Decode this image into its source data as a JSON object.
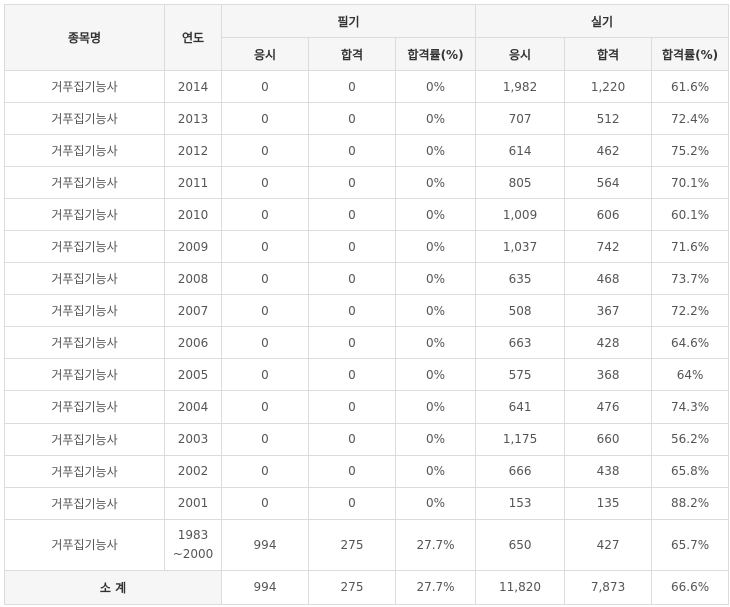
{
  "headers": {
    "name": "종목명",
    "year": "연도",
    "written": "필기",
    "practical": "실기",
    "applicants": "응시",
    "passed": "합격",
    "rate": "합격률(%)"
  },
  "rows": [
    {
      "name": "거푸집기능사",
      "year": "2014",
      "w_app": "0",
      "w_pass": "0",
      "w_rate": "0%",
      "p_app": "1,982",
      "p_pass": "1,220",
      "p_rate": "61.6%"
    },
    {
      "name": "거푸집기능사",
      "year": "2013",
      "w_app": "0",
      "w_pass": "0",
      "w_rate": "0%",
      "p_app": "707",
      "p_pass": "512",
      "p_rate": "72.4%"
    },
    {
      "name": "거푸집기능사",
      "year": "2012",
      "w_app": "0",
      "w_pass": "0",
      "w_rate": "0%",
      "p_app": "614",
      "p_pass": "462",
      "p_rate": "75.2%"
    },
    {
      "name": "거푸집기능사",
      "year": "2011",
      "w_app": "0",
      "w_pass": "0",
      "w_rate": "0%",
      "p_app": "805",
      "p_pass": "564",
      "p_rate": "70.1%"
    },
    {
      "name": "거푸집기능사",
      "year": "2010",
      "w_app": "0",
      "w_pass": "0",
      "w_rate": "0%",
      "p_app": "1,009",
      "p_pass": "606",
      "p_rate": "60.1%"
    },
    {
      "name": "거푸집기능사",
      "year": "2009",
      "w_app": "0",
      "w_pass": "0",
      "w_rate": "0%",
      "p_app": "1,037",
      "p_pass": "742",
      "p_rate": "71.6%"
    },
    {
      "name": "거푸집기능사",
      "year": "2008",
      "w_app": "0",
      "w_pass": "0",
      "w_rate": "0%",
      "p_app": "635",
      "p_pass": "468",
      "p_rate": "73.7%"
    },
    {
      "name": "거푸집기능사",
      "year": "2007",
      "w_app": "0",
      "w_pass": "0",
      "w_rate": "0%",
      "p_app": "508",
      "p_pass": "367",
      "p_rate": "72.2%"
    },
    {
      "name": "거푸집기능사",
      "year": "2006",
      "w_app": "0",
      "w_pass": "0",
      "w_rate": "0%",
      "p_app": "663",
      "p_pass": "428",
      "p_rate": "64.6%"
    },
    {
      "name": "거푸집기능사",
      "year": "2005",
      "w_app": "0",
      "w_pass": "0",
      "w_rate": "0%",
      "p_app": "575",
      "p_pass": "368",
      "p_rate": "64%"
    },
    {
      "name": "거푸집기능사",
      "year": "2004",
      "w_app": "0",
      "w_pass": "0",
      "w_rate": "0%",
      "p_app": "641",
      "p_pass": "476",
      "p_rate": "74.3%"
    },
    {
      "name": "거푸집기능사",
      "year": "2003",
      "w_app": "0",
      "w_pass": "0",
      "w_rate": "0%",
      "p_app": "1,175",
      "p_pass": "660",
      "p_rate": "56.2%"
    },
    {
      "name": "거푸집기능사",
      "year": "2002",
      "w_app": "0",
      "w_pass": "0",
      "w_rate": "0%",
      "p_app": "666",
      "p_pass": "438",
      "p_rate": "65.8%"
    },
    {
      "name": "거푸집기능사",
      "year": "2001",
      "w_app": "0",
      "w_pass": "0",
      "w_rate": "0%",
      "p_app": "153",
      "p_pass": "135",
      "p_rate": "88.2%"
    }
  ],
  "range_row": {
    "name": "거푸집기능사",
    "year_line1": "1983",
    "year_line2": "~2000",
    "w_app": "994",
    "w_pass": "275",
    "w_rate": "27.7%",
    "p_app": "650",
    "p_pass": "427",
    "p_rate": "65.7%"
  },
  "total": {
    "label": "소 계",
    "w_app": "994",
    "w_pass": "275",
    "w_rate": "27.7%",
    "p_app": "11,820",
    "p_pass": "7,873",
    "p_rate": "66.6%"
  }
}
